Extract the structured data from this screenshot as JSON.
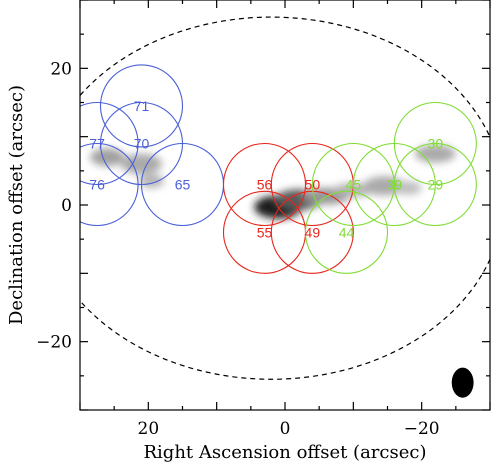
{
  "chart_data": {
    "type": "scatter",
    "xlabel": "Right Ascension offset (arcsec)",
    "ylabel": "Declination offset (arcsec)",
    "xlim": [
      30,
      -30
    ],
    "ylim": [
      -30,
      30
    ],
    "x_ticks": [
      20,
      0,
      -20
    ],
    "y_ticks": [
      20,
      0,
      -20
    ],
    "x_tick_labels": [
      "20",
      "0",
      "−20"
    ],
    "y_tick_labels": [
      "20",
      "0",
      "−20"
    ],
    "circle_radius": 6,
    "groups": [
      {
        "color": "#4a5fd6",
        "circles": [
          {
            "label": "71",
            "x": 21,
            "y": 14.5
          },
          {
            "label": "77",
            "x": 27.5,
            "y": 9
          },
          {
            "label": "70",
            "x": 21,
            "y": 9
          },
          {
            "label": "76",
            "x": 27.5,
            "y": 3
          },
          {
            "label": "65",
            "x": 15,
            "y": 3
          }
        ]
      },
      {
        "color": "#e8261c",
        "circles": [
          {
            "label": "56",
            "x": 3,
            "y": 3
          },
          {
            "label": "50",
            "x": -4,
            "y": 3
          },
          {
            "label": "55",
            "x": 3,
            "y": -4
          },
          {
            "label": "49",
            "x": -4,
            "y": -4
          }
        ]
      },
      {
        "color": "#80dc36",
        "circles": [
          {
            "label": "45",
            "x": -10,
            "y": 3
          },
          {
            "label": "39",
            "x": -16,
            "y": 3
          },
          {
            "label": "29",
            "x": -22,
            "y": 3
          },
          {
            "label": "30",
            "x": -22,
            "y": 9
          },
          {
            "label": "44",
            "x": -9,
            "y": -4
          }
        ]
      }
    ],
    "boundary_ellipse": {
      "x": 2,
      "y": 1,
      "rx": 34,
      "ry": 26.5
    },
    "emission_clumps": [
      {
        "x": 1,
        "y": -0.3,
        "rx": 3.5,
        "ry": 1.7,
        "intensity": 1.0
      },
      {
        "x": -2,
        "y": 0.8,
        "rx": 3.5,
        "ry": 1.5,
        "intensity": 0.7
      },
      {
        "x": -6,
        "y": 1.3,
        "rx": 3.5,
        "ry": 1.2,
        "intensity": 0.4
      },
      {
        "x": -10,
        "y": 2.2,
        "rx": 3,
        "ry": 1,
        "intensity": 0.25
      },
      {
        "x": -14.5,
        "y": 2.8,
        "rx": 3,
        "ry": 1.4,
        "intensity": 0.3
      },
      {
        "x": -18,
        "y": 2.5,
        "rx": 2,
        "ry": 1,
        "intensity": 0.2
      },
      {
        "x": -22,
        "y": 7.5,
        "rx": 3,
        "ry": 1.3,
        "intensity": 0.3
      },
      {
        "x": 26,
        "y": 7,
        "rx": 2.5,
        "ry": 1.3,
        "intensity": 0.35
      },
      {
        "x": 21,
        "y": 6,
        "rx": 3,
        "ry": 1.5,
        "intensity": 0.3
      },
      {
        "x": 19.5,
        "y": 3.5,
        "rx": 1.8,
        "ry": 1,
        "intensity": 0.25
      }
    ],
    "beam": {
      "x": -26,
      "y": -26,
      "width": 1.6,
      "height": 2.2
    },
    "grid": false
  }
}
